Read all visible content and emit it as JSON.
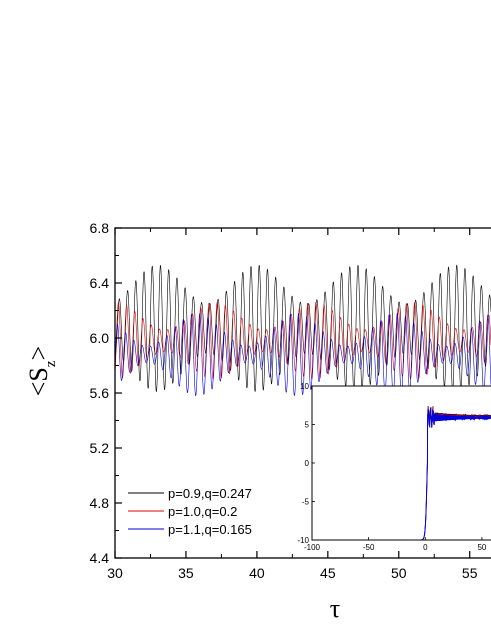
{
  "chart_data": [
    {
      "type": "line",
      "xlabel": "τ",
      "ylabel_main": "<S",
      "ylabel_sub": "z",
      "ylabel_end": ">",
      "xlim": [
        30,
        56
      ],
      "ylim": [
        4.4,
        6.8
      ],
      "x_ticks": [
        30,
        35,
        40,
        45,
        50,
        55
      ],
      "y_ticks": [
        4.4,
        4.8,
        5.2,
        5.6,
        6.0,
        6.4,
        6.8
      ],
      "x_tick_labels": [
        "30",
        "35",
        "40",
        "45",
        "50",
        "55"
      ],
      "y_tick_labels": [
        "4.4",
        "4.8",
        "5.2",
        "5.6",
        "6.0",
        "6.4",
        "6.8"
      ],
      "legend_position": "lower-left",
      "series": [
        {
          "name": "p=0.9,q=0.247",
          "color": "#000000",
          "mean": 6.07,
          "amplitude": 0.32,
          "amplitude_mod": 0.14,
          "oscillation_period": 0.58,
          "beat_period": 7.0
        },
        {
          "name": "p=1.0,q=0.2",
          "color": "#dd0000",
          "mean": 5.98,
          "amplitude": 0.18,
          "amplitude_mod": 0.1,
          "oscillation_period": 0.58,
          "beat_period": 7.0
        },
        {
          "name": "p=1.1,q=0.165",
          "color": "#0000dd",
          "mean": 5.88,
          "amplitude": 0.18,
          "amplitude_mod": 0.12,
          "oscillation_period": 0.58,
          "beat_period": 7.0
        }
      ]
    },
    {
      "type": "line",
      "role": "inset",
      "xlim": [
        -100,
        56
      ],
      "ylim": [
        -10,
        10
      ],
      "x_ticks": [
        -100,
        -50,
        0,
        50
      ],
      "y_ticks": [
        -10,
        -5,
        0,
        5,
        10
      ],
      "x_tick_labels": [
        "-100",
        "-50",
        "0",
        "50"
      ],
      "y_tick_labels": [
        "-10",
        "-5",
        "0",
        "5",
        "10"
      ],
      "series": [
        {
          "name": "p=0.9,q=0.247",
          "color": "#000000",
          "plateau": 6.07
        },
        {
          "name": "p=1.0,q=0.2",
          "color": "#dd0000",
          "plateau": 5.98
        },
        {
          "name": "p=1.1,q=0.165",
          "color": "#0000dd",
          "plateau": 5.88
        }
      ]
    }
  ]
}
